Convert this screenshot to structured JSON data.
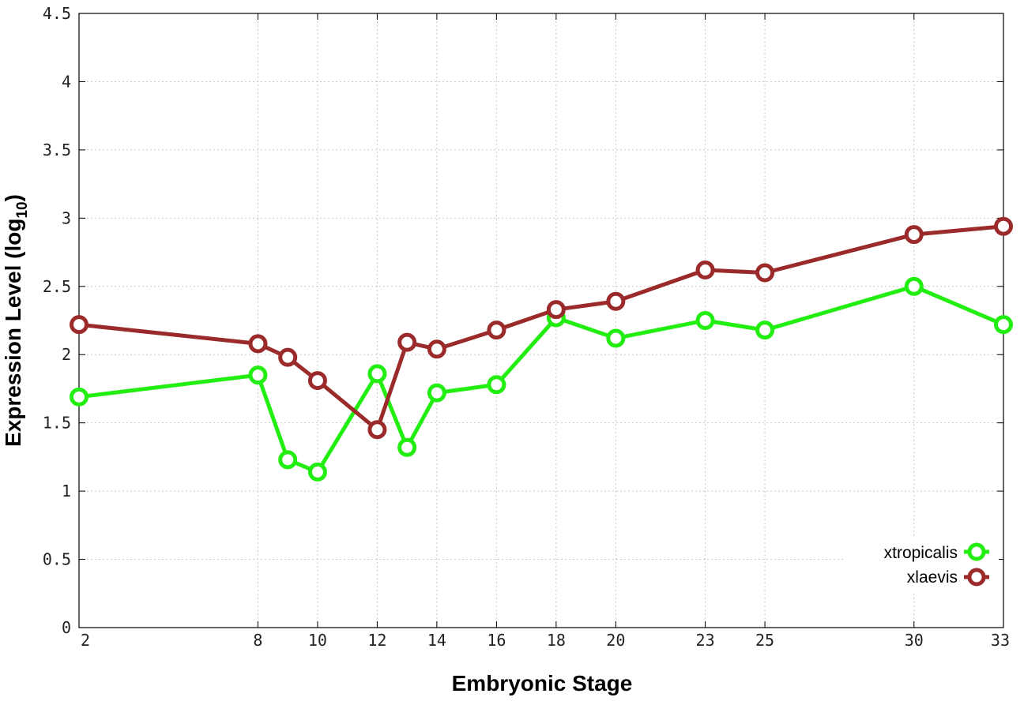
{
  "chart_data": {
    "type": "line",
    "title": "",
    "xlabel": "Embryonic Stage",
    "ylabel_main": "Expression Level (log",
    "ylabel_sub": "10",
    "ylabel_close": ")",
    "ylim": [
      0,
      4.5
    ],
    "yticks": [
      "0",
      "0.5",
      "1",
      "1.5",
      "2",
      "2.5",
      "3",
      "3.5",
      "4",
      "4.5"
    ],
    "x": [
      "2",
      "8",
      "9",
      "10",
      "12",
      "13",
      "14",
      "16",
      "18",
      "20",
      "23",
      "25",
      "30",
      "33"
    ],
    "xticks": [
      "2",
      "8",
      "10",
      "12",
      "14",
      "16",
      "18",
      "20",
      "23",
      "25",
      "30",
      "33"
    ],
    "grid": true,
    "legend_position": "bottom-right",
    "series": [
      {
        "name": "xtropicalis",
        "color": "#22ee11",
        "marker": "open-circle",
        "values": [
          1.69,
          1.85,
          1.23,
          1.14,
          1.86,
          1.32,
          1.72,
          1.78,
          2.27,
          2.12,
          2.25,
          2.18,
          2.5,
          2.22
        ]
      },
      {
        "name": "xlaevis",
        "color": "#9b2a2a",
        "marker": "open-circle",
        "values": [
          2.22,
          2.08,
          1.98,
          1.81,
          1.45,
          2.09,
          2.04,
          2.18,
          2.33,
          2.39,
          2.62,
          2.6,
          2.88,
          2.94
        ]
      }
    ]
  }
}
